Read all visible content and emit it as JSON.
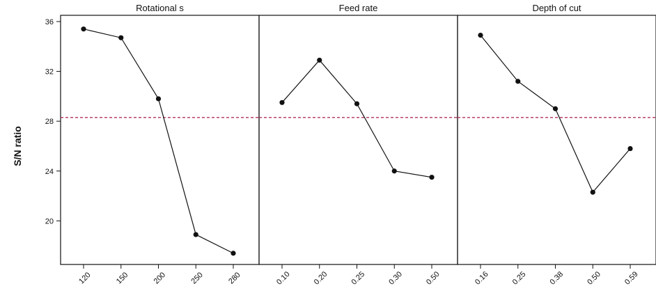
{
  "chart_data": {
    "type": "line",
    "ylabel": "S/N ratio",
    "ylim": [
      16.5,
      36.5
    ],
    "yticks": [
      20,
      24,
      28,
      32,
      36
    ],
    "reference_line": {
      "value": 28.3,
      "style": "dashed",
      "color": "#b0305a"
    },
    "grid": false,
    "legend": "none",
    "line_color": "#111111",
    "panels": [
      {
        "name": "Rotational s",
        "categories": [
          "120",
          "150",
          "200",
          "250",
          "280"
        ],
        "values": [
          35.4,
          34.7,
          29.8,
          18.9,
          17.4
        ]
      },
      {
        "name": "Feed rate",
        "categories": [
          "0.10",
          "0.20",
          "0.25",
          "0.30",
          "0.50"
        ],
        "values": [
          29.5,
          32.9,
          29.4,
          24.0,
          23.5
        ]
      },
      {
        "name": "Depth of cut",
        "categories": [
          "0.16",
          "0.25",
          "0.38",
          "0.50",
          "0.59"
        ],
        "values": [
          34.9,
          31.2,
          29.0,
          22.3,
          25.8
        ]
      }
    ]
  }
}
